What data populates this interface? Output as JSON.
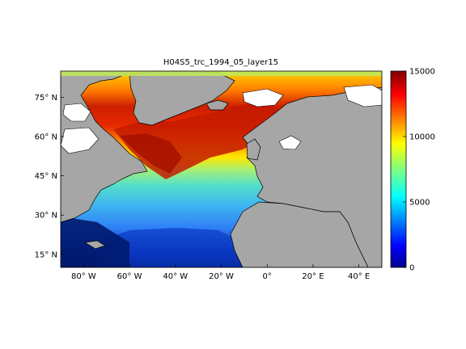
{
  "figure": {
    "title": "H04S5_trc_1994_05_layer15"
  },
  "map": {
    "x_ticks": [
      {
        "lon": -80,
        "label": "80° W"
      },
      {
        "lon": -60,
        "label": "60° W"
      },
      {
        "lon": -40,
        "label": "40° W"
      },
      {
        "lon": -20,
        "label": "20° W"
      },
      {
        "lon": 0,
        "label": "0°"
      },
      {
        "lon": 20,
        "label": "20° E"
      },
      {
        "lon": 40,
        "label": "40° E"
      }
    ],
    "y_ticks": [
      {
        "lat": 75,
        "label": "75° N"
      },
      {
        "lat": 60,
        "label": "60° N"
      },
      {
        "lat": 45,
        "label": "45° N"
      },
      {
        "lat": 30,
        "label": "30° N"
      },
      {
        "lat": 15,
        "label": "15° N"
      }
    ],
    "lon_range": [
      -90,
      50
    ],
    "lat_range": [
      10,
      85
    ],
    "land_color": "#a6a6a6",
    "missing_color": "#ffffff",
    "colormap": "jet"
  },
  "colorbar": {
    "range": [
      0,
      15000
    ],
    "ticks": [
      {
        "value": 0,
        "label": "0"
      },
      {
        "value": 5000,
        "label": "5000"
      },
      {
        "value": 10000,
        "label": "10000"
      },
      {
        "value": 15000,
        "label": "15000"
      }
    ]
  }
}
